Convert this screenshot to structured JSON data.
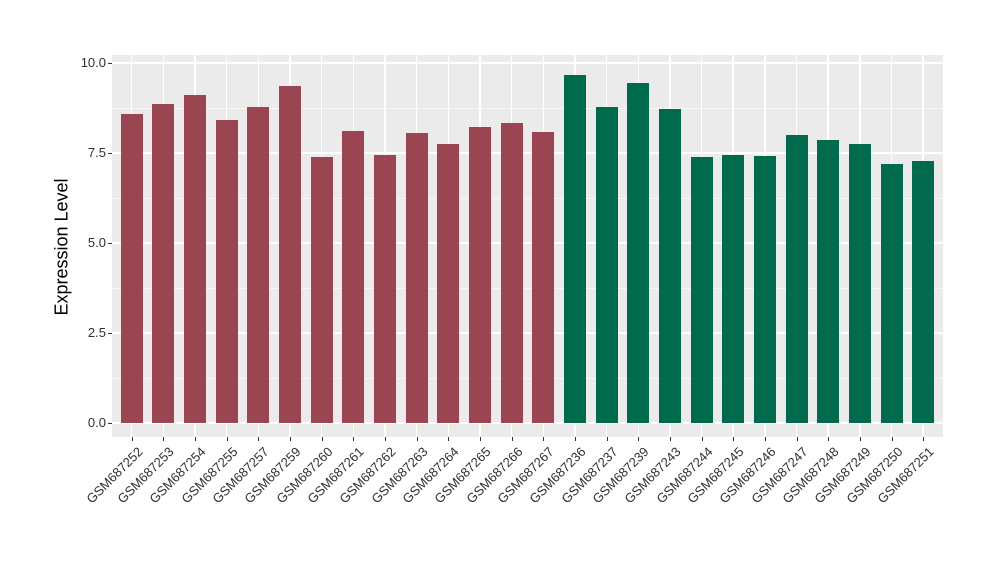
{
  "chart_data": {
    "type": "bar",
    "title": "",
    "xlabel": "",
    "ylabel": "Expression Level",
    "ylim": [
      0,
      10
    ],
    "ytick_values": [
      0,
      2.5,
      5,
      7.5,
      10
    ],
    "ytick_labels": [
      "0.0",
      "2.5",
      "5.0",
      "7.5",
      "10.0"
    ],
    "yminor_values": [
      1.25,
      3.75,
      6.25,
      8.75
    ],
    "grid": "on",
    "legend_position": "none",
    "categories": [
      "GSM687252",
      "GSM687253",
      "GSM687254",
      "GSM687255",
      "GSM687257",
      "GSM687259",
      "GSM687260",
      "GSM687261",
      "GSM687262",
      "GSM687263",
      "GSM687264",
      "GSM687265",
      "GSM687266",
      "GSM687267",
      "GSM687236",
      "GSM687237",
      "GSM687239",
      "GSM687243",
      "GSM687244",
      "GSM687245",
      "GSM687246",
      "GSM687247",
      "GSM687248",
      "GSM687249",
      "GSM687250",
      "GSM687251"
    ],
    "values": [
      8.58,
      8.85,
      9.12,
      8.42,
      8.78,
      9.35,
      7.4,
      8.1,
      7.45,
      8.05,
      7.76,
      8.22,
      8.33,
      8.08,
      9.68,
      8.78,
      9.45,
      8.72,
      7.38,
      7.45,
      7.42,
      8.0,
      7.85,
      7.76,
      7.2,
      7.28
    ],
    "groups": [
      "group1",
      "group1",
      "group1",
      "group1",
      "group1",
      "group1",
      "group1",
      "group1",
      "group1",
      "group1",
      "group1",
      "group1",
      "group1",
      "group1",
      "group2",
      "group2",
      "group2",
      "group2",
      "group2",
      "group2",
      "group2",
      "group2",
      "group2",
      "group2",
      "group2",
      "group2"
    ],
    "group_colors": {
      "group1": "#9B4452",
      "group2": "#016A4D"
    }
  },
  "colors": {
    "panel_background": "#EBEBEB",
    "figure_background": "#FFFFFF",
    "gridline": "#FFFFFF",
    "tick_mark": "#333333",
    "axis_text": "#2F2F2F",
    "axis_title": "#000000"
  }
}
